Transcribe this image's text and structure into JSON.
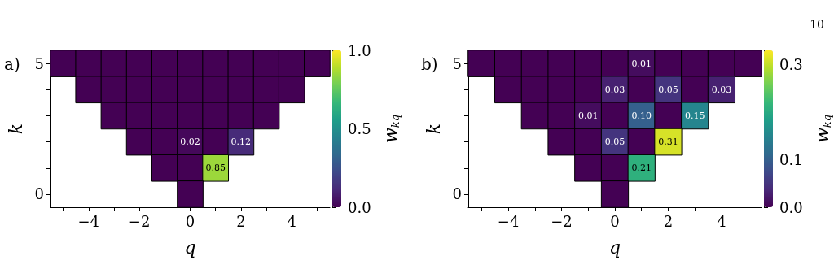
{
  "chart_data": [
    {
      "type": "heatmap",
      "title": "a)",
      "xlabel": "q",
      "ylabel": "k",
      "clabel": "w$_{kq}$",
      "categories": [
        null,
        "−4",
        null,
        "−2",
        null,
        "0",
        null,
        "2",
        null,
        "4",
        null
      ],
      "y_categories": [
        "5",
        null,
        null,
        null,
        null,
        "0"
      ],
      "cells": [
        [
          0,
          0,
          0,
          0,
          0,
          0,
          0,
          0,
          0,
          0,
          0
        ],
        [
          null,
          0,
          0,
          0,
          0,
          0,
          0,
          0,
          0,
          0,
          null
        ],
        [
          null,
          null,
          0,
          0,
          0,
          0,
          0,
          0,
          0,
          null,
          null
        ],
        [
          null,
          null,
          null,
          0,
          0,
          0.02,
          0,
          0.12,
          null,
          null,
          null
        ],
        [
          null,
          null,
          null,
          null,
          0,
          0,
          0.85,
          null,
          null,
          null,
          null
        ],
        [
          null,
          null,
          null,
          null,
          null,
          0,
          null,
          null,
          null,
          null,
          null
        ]
      ],
      "cell_labels": [
        [
          null,
          null,
          null,
          null,
          null,
          null,
          null,
          null,
          null,
          null,
          null
        ],
        [
          null,
          null,
          null,
          null,
          null,
          null,
          null,
          null,
          null,
          null,
          null
        ],
        [
          null,
          null,
          null,
          null,
          null,
          null,
          null,
          null,
          null,
          null,
          null
        ],
        [
          null,
          null,
          null,
          null,
          null,
          "0.02",
          null,
          "0.12",
          null,
          null,
          null
        ],
        [
          null,
          null,
          null,
          null,
          null,
          null,
          "0.85",
          null,
          null,
          null,
          null
        ],
        [
          null,
          null,
          null,
          null,
          null,
          null,
          null,
          null,
          null,
          null,
          null
        ]
      ],
      "clim": [
        0,
        1
      ],
      "cticks": [
        {
          "value": 0,
          "label": "0.0"
        },
        {
          "value": 0.5,
          "label": "0.5"
        },
        {
          "value": 1,
          "label": "1.0"
        }
      ]
    },
    {
      "type": "heatmap",
      "title": "b)",
      "xlabel": "q",
      "ylabel": "k",
      "clabel": "w$_{kq}$",
      "annotations": [
        "10"
      ],
      "categories": [
        null,
        "−4",
        null,
        "−2",
        null,
        "0",
        null,
        "2",
        null,
        "4",
        null
      ],
      "y_categories": [
        "5",
        null,
        null,
        null,
        null,
        "0"
      ],
      "cells": [
        [
          0,
          0,
          0,
          0,
          0,
          0,
          0.01,
          0,
          0,
          0,
          0
        ],
        [
          null,
          0,
          0,
          0,
          0,
          0.03,
          0,
          0.05,
          0,
          0.03,
          null
        ],
        [
          null,
          null,
          0,
          0,
          0.01,
          0,
          0.1,
          0,
          0.15,
          null,
          null
        ],
        [
          null,
          null,
          null,
          0,
          0,
          0.05,
          0,
          0.31,
          null,
          null,
          null
        ],
        [
          null,
          null,
          null,
          null,
          0,
          0,
          0.21,
          null,
          null,
          null,
          null
        ],
        [
          null,
          null,
          null,
          null,
          null,
          0,
          null,
          null,
          null,
          null,
          null
        ]
      ],
      "cell_labels": [
        [
          null,
          null,
          null,
          null,
          null,
          null,
          "0.01",
          null,
          null,
          null,
          null
        ],
        [
          null,
          null,
          null,
          null,
          null,
          "0.03",
          null,
          "0.05",
          null,
          "0.03",
          null
        ],
        [
          null,
          null,
          null,
          null,
          "0.01",
          null,
          "0.10",
          null,
          "0.15",
          null,
          null
        ],
        [
          null,
          null,
          null,
          null,
          null,
          "0.05",
          null,
          "0.31",
          null,
          null,
          null
        ],
        [
          null,
          null,
          null,
          null,
          null,
          null,
          "0.21",
          null,
          null,
          null,
          null
        ],
        [
          null,
          null,
          null,
          null,
          null,
          null,
          null,
          null,
          null,
          null,
          null
        ]
      ],
      "clim": [
        0,
        0.33
      ],
      "cticks": [
        {
          "value": 0,
          "label": "0.0"
        },
        {
          "value": 0.1,
          "label": "0.1"
        },
        {
          "value": 0.3,
          "label": "0.3"
        }
      ]
    }
  ]
}
